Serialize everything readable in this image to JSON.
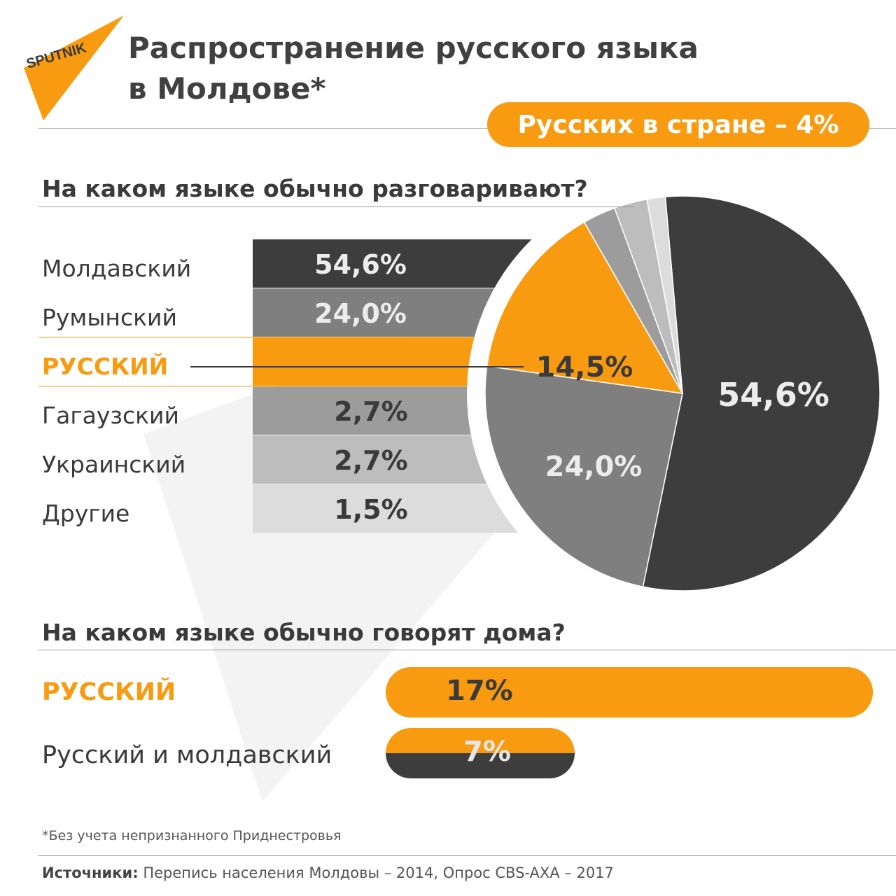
{
  "brand": {
    "logo_text": "SPUTNIK",
    "accent_color": "#f89b11"
  },
  "header": {
    "title_line1": "Распространение русского языка",
    "title_line2": "в Молдове*",
    "russians_badge": "Русских в стране – 4%"
  },
  "section1": {
    "title": "На каком языке обычно разговаривают?"
  },
  "section2": {
    "title": "На каком языке обычно говорят дома?"
  },
  "chart_data": [
    {
      "type": "pie",
      "title": "На каком языке обычно разговаривают?",
      "categories": [
        "Молдавский",
        "Румынский",
        "РУССКИЙ",
        "Гагаузский",
        "Украинский",
        "Другие"
      ],
      "values": [
        54.6,
        24.0,
        14.5,
        2.7,
        2.7,
        1.5
      ],
      "value_labels": [
        "54,6%",
        "24,0%",
        "14,5%",
        "2,7%",
        "2,7%",
        "1,5%"
      ],
      "colors": [
        "#3d3d3d",
        "#7f7f7f",
        "#f89b11",
        "#9c9c9c",
        "#bdbdbd",
        "#dcdcdc"
      ],
      "highlight": "РУССКИЙ"
    },
    {
      "type": "bar",
      "title": "На каком языке обычно говорят дома?",
      "categories": [
        "РУССКИЙ",
        "Русский и молдавский"
      ],
      "values": [
        17,
        7
      ],
      "value_labels": [
        "17%",
        "7%"
      ],
      "colors": [
        "#f89b11",
        "#f89b11/#3d3d3d"
      ]
    }
  ],
  "footer": {
    "footnote": "*Без учета непризнанного Приднестровья",
    "sources_label": "Источники:",
    "sources_text": " Перепись населения Молдовы – 2014, Опрос CBS-AXA – 2017"
  }
}
